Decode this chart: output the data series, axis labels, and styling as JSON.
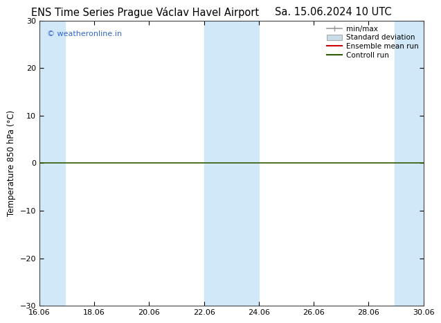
{
  "title_left": "ENS Time Series Prague Václav Havel Airport",
  "title_right": "Sa. 15.06.2024 10 UTC",
  "ylabel": "Temperature 850 hPa (°C)",
  "ylim": [
    -30,
    30
  ],
  "xlim_min": 16.06,
  "xlim_max": 30.06,
  "yticks": [
    -30,
    -20,
    -10,
    0,
    10,
    20,
    30
  ],
  "xtick_labels": [
    "16.06",
    "18.06",
    "20.06",
    "22.06",
    "24.06",
    "26.06",
    "28.06",
    "30.06"
  ],
  "xtick_values": [
    16.06,
    18.06,
    20.06,
    22.06,
    24.06,
    26.06,
    28.06,
    30.06
  ],
  "watermark": "© weatheronline.in",
  "watermark_color": "#3366cc",
  "background_color": "#ffffff",
  "shaded_bands": [
    [
      16.06,
      17.0
    ],
    [
      22.06,
      23.0
    ],
    [
      23.0,
      24.06
    ],
    [
      29.0,
      30.06
    ]
  ],
  "shade_color": "#d0e8f8",
  "control_run_y": 0,
  "control_run_color": "#2d5a00",
  "ensemble_mean_color": "#cc0000",
  "minmax_color": "#999999",
  "std_fill_color": "#c8dcea",
  "legend_entries": [
    "min/max",
    "Standard deviation",
    "Ensemble mean run",
    "Controll run"
  ],
  "title_fontsize": 10.5,
  "tick_fontsize": 8,
  "ylabel_fontsize": 8.5,
  "legend_fontsize": 7.5
}
